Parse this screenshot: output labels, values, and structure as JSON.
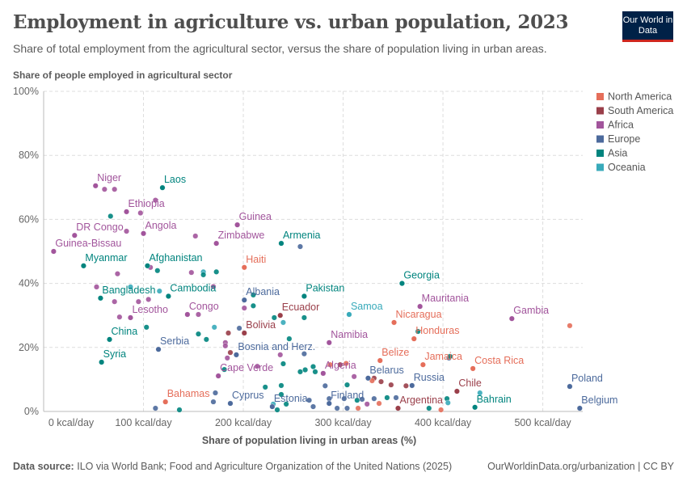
{
  "header": {
    "title": "Employment in agriculture vs. urban population, 2023",
    "subtitle": "Share of total employment from the agricultural sector, versus the share of population living in urban areas.",
    "logo": "Our World in Data"
  },
  "footer": {
    "source_label": "Data source:",
    "source": "ILO via World Bank; Food and Agriculture Organization of the United Nations (2025)",
    "right": "OurWorldinData.org/urbanization | CC BY"
  },
  "chart_data": {
    "type": "scatter",
    "title": "Employment in agriculture vs. urban population, 2023",
    "ylabel": "Share of people employed in agricultural sector",
    "xlabel": "Share of population living in urban areas (%)",
    "xlim": [
      0,
      540
    ],
    "ylim": [
      0,
      100
    ],
    "xticks": [
      0,
      100,
      200,
      300,
      400,
      500
    ],
    "xtick_labels": [
      "0 kcal/day",
      "100 kcal/day",
      "200 kcal/day",
      "300 kcal/day",
      "400 kcal/day",
      "500 kcal/day"
    ],
    "yticks": [
      0,
      20,
      40,
      60,
      80,
      100
    ],
    "ytick_labels": [
      "0%",
      "20%",
      "40%",
      "60%",
      "80%",
      "100%"
    ],
    "grid": true,
    "legend_position": "right",
    "legend": [
      {
        "name": "North America",
        "color": "#E56E5A"
      },
      {
        "name": "South America",
        "color": "#9A3F4A"
      },
      {
        "name": "Africa",
        "color": "#A2559C"
      },
      {
        "name": "Europe",
        "color": "#4C6A9C"
      },
      {
        "name": "Asia",
        "color": "#00847E"
      },
      {
        "name": "Oceania",
        "color": "#38AABA"
      }
    ],
    "labeled_points": [
      {
        "name": "Niger",
        "x": 52,
        "y": 70.5,
        "region": "Africa"
      },
      {
        "name": "Laos",
        "x": 119,
        "y": 69.9,
        "region": "Asia"
      },
      {
        "name": "Ethiopia",
        "x": 83,
        "y": 62.4,
        "region": "Africa"
      },
      {
        "name": "DR Congo",
        "x": 31,
        "y": 55,
        "region": "Africa"
      },
      {
        "name": "Angola",
        "x": 100,
        "y": 55.6,
        "region": "Africa"
      },
      {
        "name": "Guinea-Bissau",
        "x": 10,
        "y": 50,
        "region": "Africa"
      },
      {
        "name": "Myanmar",
        "x": 40,
        "y": 45.5,
        "region": "Asia"
      },
      {
        "name": "Afghanistan",
        "x": 104,
        "y": 45.5,
        "region": "Asia"
      },
      {
        "name": "Guinea",
        "x": 194,
        "y": 58.3,
        "region": "Africa"
      },
      {
        "name": "Zimbabwe",
        "x": 173,
        "y": 52.5,
        "region": "Africa"
      },
      {
        "name": "Armenia",
        "x": 238,
        "y": 52.5,
        "region": "Asia"
      },
      {
        "name": "Haiti",
        "x": 201,
        "y": 45,
        "region": "North America"
      },
      {
        "name": "Bangladesh",
        "x": 57,
        "y": 35.4,
        "region": "Asia"
      },
      {
        "name": "Cambodia",
        "x": 125,
        "y": 36,
        "region": "Asia"
      },
      {
        "name": "Albania",
        "x": 201,
        "y": 34.8,
        "region": "Europe"
      },
      {
        "name": "Pakistan",
        "x": 261,
        "y": 36,
        "region": "Asia"
      },
      {
        "name": "Georgia",
        "x": 359,
        "y": 40,
        "region": "Asia"
      },
      {
        "name": "Lesotho",
        "x": 87,
        "y": 29.3,
        "region": "Africa"
      },
      {
        "name": "Congo",
        "x": 144,
        "y": 30.3,
        "region": "Africa"
      },
      {
        "name": "Ecuador",
        "x": 237,
        "y": 30,
        "region": "South America"
      },
      {
        "name": "Samoa",
        "x": 306,
        "y": 30.3,
        "region": "Oceania"
      },
      {
        "name": "Mauritania",
        "x": 377,
        "y": 32.8,
        "region": "Africa"
      },
      {
        "name": "Gambia",
        "x": 469,
        "y": 29,
        "region": "Africa"
      },
      {
        "name": "Nicaragua",
        "x": 351,
        "y": 27.8,
        "region": "North America"
      },
      {
        "name": "Honduras",
        "x": 371,
        "y": 22.7,
        "region": "North America"
      },
      {
        "name": "Bolivia",
        "x": 201,
        "y": 24.5,
        "region": "South America"
      },
      {
        "name": "China",
        "x": 66,
        "y": 22.5,
        "region": "Asia"
      },
      {
        "name": "Serbia",
        "x": 115,
        "y": 19.4,
        "region": "Europe"
      },
      {
        "name": "Namibia",
        "x": 286,
        "y": 21.5,
        "region": "Africa"
      },
      {
        "name": "Syria",
        "x": 58,
        "y": 15.4,
        "region": "Asia"
      },
      {
        "name": "Bosnia and Herz.",
        "x": 193,
        "y": 17.7,
        "region": "Europe"
      },
      {
        "name": "Belize",
        "x": 337,
        "y": 15.9,
        "region": "North America"
      },
      {
        "name": "Jamaica",
        "x": 380,
        "y": 14.6,
        "region": "North America"
      },
      {
        "name": "Costa Rica",
        "x": 430,
        "y": 13.4,
        "region": "North America"
      },
      {
        "name": "Cape Verde",
        "x": 175,
        "y": 11.1,
        "region": "Africa"
      },
      {
        "name": "Algeria",
        "x": 280,
        "y": 11.9,
        "region": "Africa"
      },
      {
        "name": "Belarus",
        "x": 325,
        "y": 10.4,
        "region": "Europe"
      },
      {
        "name": "Russia",
        "x": 369,
        "y": 8.1,
        "region": "Europe"
      },
      {
        "name": "Chile",
        "x": 414,
        "y": 6.3,
        "region": "South America"
      },
      {
        "name": "Poland",
        "x": 527,
        "y": 7.8,
        "region": "Europe"
      },
      {
        "name": "Bahamas",
        "x": 122,
        "y": 3,
        "region": "North America"
      },
      {
        "name": "Cyprus",
        "x": 187,
        "y": 2.5,
        "region": "Europe"
      },
      {
        "name": "Estonia",
        "x": 229,
        "y": 1.5,
        "region": "Europe"
      },
      {
        "name": "Finland",
        "x": 286,
        "y": 2.5,
        "region": "Europe"
      },
      {
        "name": "Argentina",
        "x": 355,
        "y": 1,
        "region": "South America"
      },
      {
        "name": "Bahrain",
        "x": 432,
        "y": 1.3,
        "region": "Asia"
      },
      {
        "name": "Belgium",
        "x": 537,
        "y": 1,
        "region": "Europe"
      }
    ],
    "other_points": [
      [
        61,
        69.4,
        "Africa"
      ],
      [
        71,
        69.4,
        "Africa"
      ],
      [
        112,
        66,
        "Africa"
      ],
      [
        67,
        61,
        "Asia"
      ],
      [
        97,
        62,
        "Africa"
      ],
      [
        83,
        56.3,
        "Africa"
      ],
      [
        152,
        54.8,
        "Africa"
      ],
      [
        257,
        51.5,
        "Europe"
      ],
      [
        107,
        45,
        "Africa"
      ],
      [
        114,
        44,
        "Asia"
      ],
      [
        148,
        43.4,
        "Africa"
      ],
      [
        160,
        43.6,
        "Oceania"
      ],
      [
        160,
        42.7,
        "Asia"
      ],
      [
        173,
        43.6,
        "Asia"
      ],
      [
        74,
        43,
        "Africa"
      ],
      [
        53,
        38.9,
        "Africa"
      ],
      [
        87,
        38.9,
        "Oceania"
      ],
      [
        116,
        37.6,
        "Oceania"
      ],
      [
        170,
        39,
        "Africa"
      ],
      [
        71,
        34.3,
        "Africa"
      ],
      [
        95,
        34.3,
        "Africa"
      ],
      [
        105,
        35,
        "Africa"
      ],
      [
        210,
        36.4,
        "Asia"
      ],
      [
        201,
        32.3,
        "Africa"
      ],
      [
        210,
        33,
        "Asia"
      ],
      [
        155,
        30.3,
        "Africa"
      ],
      [
        76,
        29.5,
        "Africa"
      ],
      [
        103,
        26.3,
        "Asia"
      ],
      [
        171,
        26.3,
        "Oceania"
      ],
      [
        196,
        26,
        "Europe"
      ],
      [
        185,
        24.5,
        "South America"
      ],
      [
        155,
        24.2,
        "Asia"
      ],
      [
        163,
        22.5,
        "Asia"
      ],
      [
        182,
        21.5,
        "Africa"
      ],
      [
        182,
        20.5,
        "Africa"
      ],
      [
        187,
        18.4,
        "South America"
      ],
      [
        184,
        16.7,
        "Africa"
      ],
      [
        231,
        29.3,
        "Asia"
      ],
      [
        240,
        27.8,
        "Oceania"
      ],
      [
        261,
        29.3,
        "Asia"
      ],
      [
        246,
        22.7,
        "Asia"
      ],
      [
        237,
        17.7,
        "Africa"
      ],
      [
        261,
        18,
        "Europe"
      ],
      [
        214,
        14.1,
        "Africa"
      ],
      [
        257,
        12.4,
        "Asia"
      ],
      [
        262,
        13,
        "Asia"
      ],
      [
        270,
        14,
        "Asia"
      ],
      [
        287,
        14.6,
        "North America"
      ],
      [
        297,
        14.6,
        "South America"
      ],
      [
        303,
        15,
        "North America"
      ],
      [
        240,
        14.9,
        "Asia"
      ],
      [
        272,
        12.4,
        "Asia"
      ],
      [
        181,
        13.1,
        "Asia"
      ],
      [
        172,
        5.8,
        "Europe"
      ],
      [
        170,
        3,
        "Europe"
      ],
      [
        112,
        1,
        "Europe"
      ],
      [
        136,
        0.5,
        "Asia"
      ],
      [
        222,
        7.6,
        "Asia"
      ],
      [
        238,
        8.1,
        "Asia"
      ],
      [
        238,
        5.3,
        "Asia"
      ],
      [
        243,
        2.3,
        "Asia"
      ],
      [
        230,
        2.3,
        "Oceania"
      ],
      [
        234,
        0.5,
        "Asia"
      ],
      [
        282,
        8,
        "Europe"
      ],
      [
        304,
        8.3,
        "Asia"
      ],
      [
        311,
        10.9,
        "Africa"
      ],
      [
        331,
        10.4,
        "South America"
      ],
      [
        338,
        9.3,
        "South America"
      ],
      [
        348,
        8.3,
        "South America"
      ],
      [
        363,
        8,
        "South America"
      ],
      [
        329,
        9.6,
        "North America"
      ],
      [
        266,
        3.5,
        "Europe"
      ],
      [
        286,
        4,
        "Europe"
      ],
      [
        301,
        4,
        "Europe"
      ],
      [
        314,
        3.5,
        "Asia"
      ],
      [
        319,
        3.8,
        "Europe"
      ],
      [
        331,
        4,
        "Europe"
      ],
      [
        344,
        4.3,
        "Asia"
      ],
      [
        353,
        4.3,
        "Europe"
      ],
      [
        324,
        2.3,
        "Africa"
      ],
      [
        315,
        1,
        "North America"
      ],
      [
        304,
        1,
        "Europe"
      ],
      [
        404,
        4,
        "Asia"
      ],
      [
        405,
        2.7,
        "Oceania"
      ],
      [
        398,
        0.5,
        "North America"
      ],
      [
        386,
        1,
        "Asia"
      ],
      [
        406,
        16.7,
        "Europe"
      ],
      [
        407,
        17.2,
        "Asia"
      ],
      [
        437,
        5.8,
        "Oceania"
      ],
      [
        375,
        25,
        "Asia"
      ],
      [
        527,
        26.8,
        "North America"
      ],
      [
        336,
        2.5,
        "North America"
      ],
      [
        294,
        1,
        "Europe"
      ],
      [
        270,
        1.5,
        "Europe"
      ]
    ]
  }
}
